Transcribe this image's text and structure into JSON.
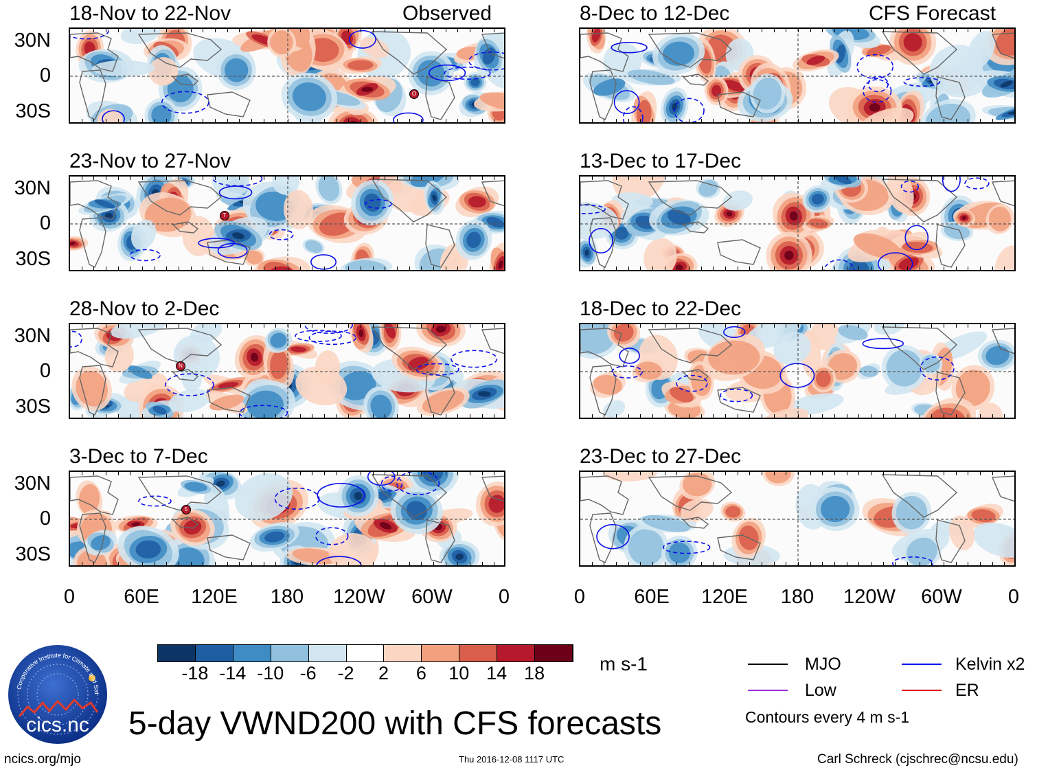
{
  "colors": {
    "accent": "#0000ff",
    "mjo": "#000000",
    "low": "#9b30d9",
    "kelvin": "#0b10e8",
    "er": "#e01010",
    "positive": "#c0292b",
    "negative": "#2b6cae"
  },
  "panels": {
    "left": [
      {
        "title": "18-Nov to 22-Nov",
        "tag": "Observed",
        "storm": "O"
      },
      {
        "title": "23-Nov to 27-Nov",
        "tag": "",
        "storm": "T"
      },
      {
        "title": "28-Nov to 2-Dec",
        "tag": "",
        "storm": "N"
      },
      {
        "title": "3-Dec to 7-Dec",
        "tag": "",
        "storm": "5"
      }
    ],
    "right": [
      {
        "title": "8-Dec to 12-Dec",
        "tag": "CFS Forecast"
      },
      {
        "title": "13-Dec to 17-Dec",
        "tag": ""
      },
      {
        "title": "18-Dec to 22-Dec",
        "tag": ""
      },
      {
        "title": "23-Dec to 27-Dec",
        "tag": ""
      }
    ]
  },
  "axes": {
    "lat_labels": [
      "30N",
      "0",
      "30S"
    ],
    "lon_labels": [
      "0",
      "60E",
      "120E",
      "180",
      "120W",
      "60W",
      "0"
    ]
  },
  "colorbar": {
    "tick_labels": [
      "-18",
      "-14",
      "-10",
      "-6",
      "-2",
      "2",
      "6",
      "10",
      "14",
      "18"
    ],
    "unit": "m s-1",
    "swatches": [
      "#0c3566",
      "#1f5ea3",
      "#3f8cc4",
      "#92c1df",
      "#d2e5f1",
      "#ffffff",
      "#fbd6c3",
      "#f2a17f",
      "#d95f4c",
      "#b5192b",
      "#6b0018"
    ]
  },
  "legend": {
    "mjo": "MJO",
    "kelvin": "Kelvin x2",
    "low": "Low",
    "er": "ER",
    "contour_note": "Contours every 4 m s-1"
  },
  "footer": {
    "title": "5-day VWND200 with CFS forecasts",
    "site": "ncics.org/mjo",
    "timestamp": "Thu 2016-12-08 1117 UTC",
    "author": "Carl Schreck (cjschrec@ncsu.edu)",
    "logo_text": "cics.nc",
    "logo_ring": "Cooperative Institute for Climate and Satellites"
  }
}
